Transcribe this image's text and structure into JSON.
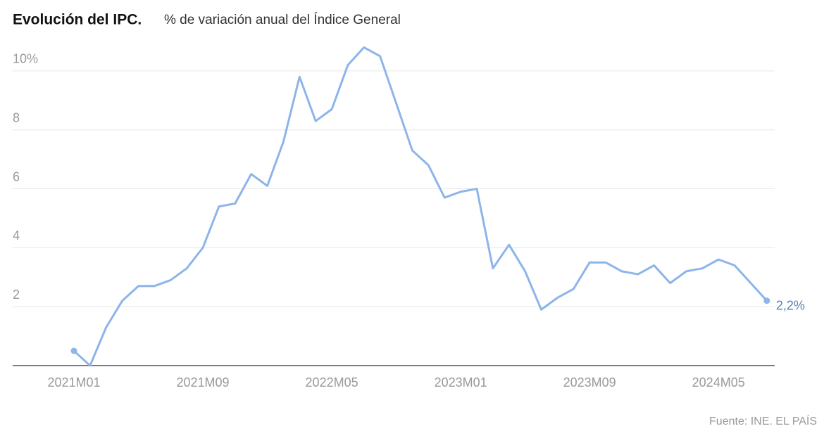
{
  "chart_data": {
    "type": "line",
    "title": "Evolución del IPC.",
    "subtitle": "% de variación anual del Índice General",
    "source": "Fuente: INE. EL PAÍS",
    "categories": [
      "2021M01",
      null,
      null,
      null,
      null,
      null,
      null,
      null,
      "2021M09",
      null,
      null,
      null,
      null,
      null,
      null,
      null,
      "2022M05",
      null,
      null,
      null,
      null,
      null,
      null,
      null,
      "2023M01",
      null,
      null,
      null,
      null,
      null,
      null,
      null,
      "2023M09",
      null,
      null,
      null,
      null,
      null,
      null,
      null,
      "2024M05",
      null,
      null,
      null
    ],
    "series": [
      {
        "name": "IPC",
        "color": "#8db5e9",
        "values": [
          0.5,
          0.0,
          1.3,
          2.2,
          2.7,
          2.7,
          2.9,
          3.3,
          4.0,
          5.4,
          5.5,
          6.5,
          6.1,
          7.6,
          9.8,
          8.3,
          8.7,
          10.2,
          10.8,
          10.5,
          8.9,
          7.3,
          6.8,
          5.7,
          5.9,
          6.0,
          3.3,
          4.1,
          3.2,
          1.9,
          2.3,
          2.6,
          3.5,
          3.5,
          3.2,
          3.1,
          3.4,
          2.8,
          3.2,
          3.3,
          3.6,
          3.4,
          2.8,
          2.2
        ],
        "value_labels": [
          null,
          null,
          null,
          null,
          null,
          null,
          null,
          null,
          null,
          null,
          null,
          null,
          null,
          null,
          null,
          null,
          null,
          null,
          null,
          null,
          null,
          null,
          null,
          null,
          null,
          null,
          null,
          null,
          null,
          null,
          null,
          null,
          null,
          null,
          null,
          null,
          null,
          null,
          null,
          null,
          null,
          null,
          null,
          "2,2%"
        ]
      }
    ],
    "ylim": [
      0,
      11
    ],
    "yticks": [
      2,
      4,
      6,
      8,
      {
        "value": 10,
        "label": "10%"
      }
    ],
    "grid": true
  }
}
